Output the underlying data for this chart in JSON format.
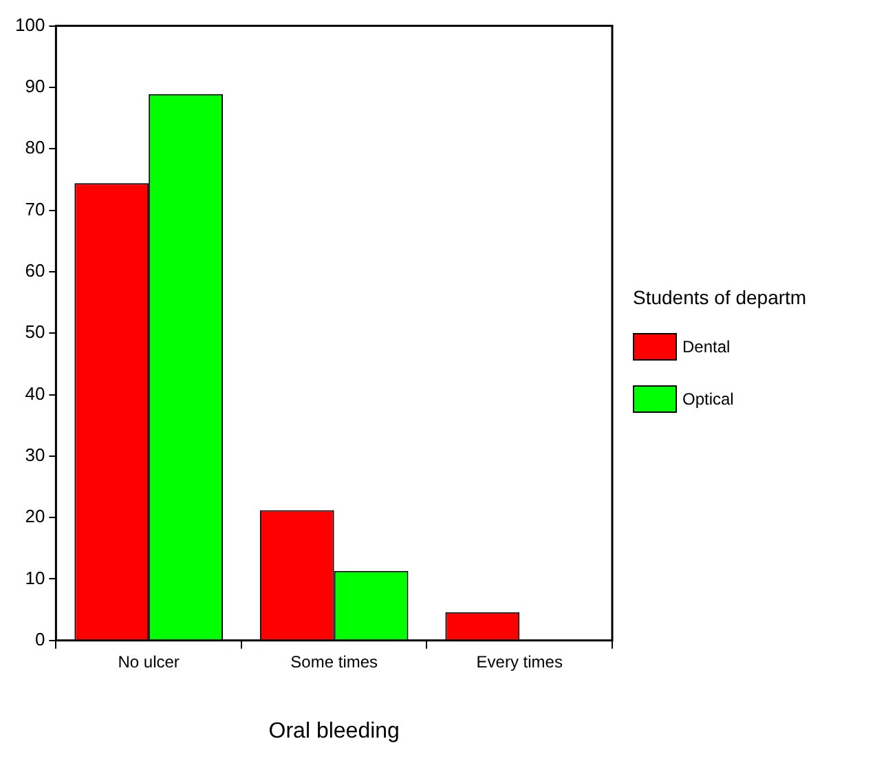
{
  "chart_data": {
    "type": "bar",
    "xlabel": "Oral bleeding",
    "legend_title": "Students of departm",
    "categories": [
      "No ulcer",
      "Some times",
      "Every times"
    ],
    "series": [
      {
        "name": "Dental",
        "color": "#ff0000",
        "values": [
          74.4,
          21.2,
          4.6
        ]
      },
      {
        "name": "Optical",
        "color": "#00ff00",
        "values": [
          88.9,
          11.3,
          0
        ]
      }
    ],
    "ylim": [
      0,
      100
    ],
    "yticks": [
      0,
      10,
      20,
      30,
      40,
      50,
      60,
      70,
      80,
      90,
      100
    ],
    "grid": false,
    "legend": "right"
  }
}
